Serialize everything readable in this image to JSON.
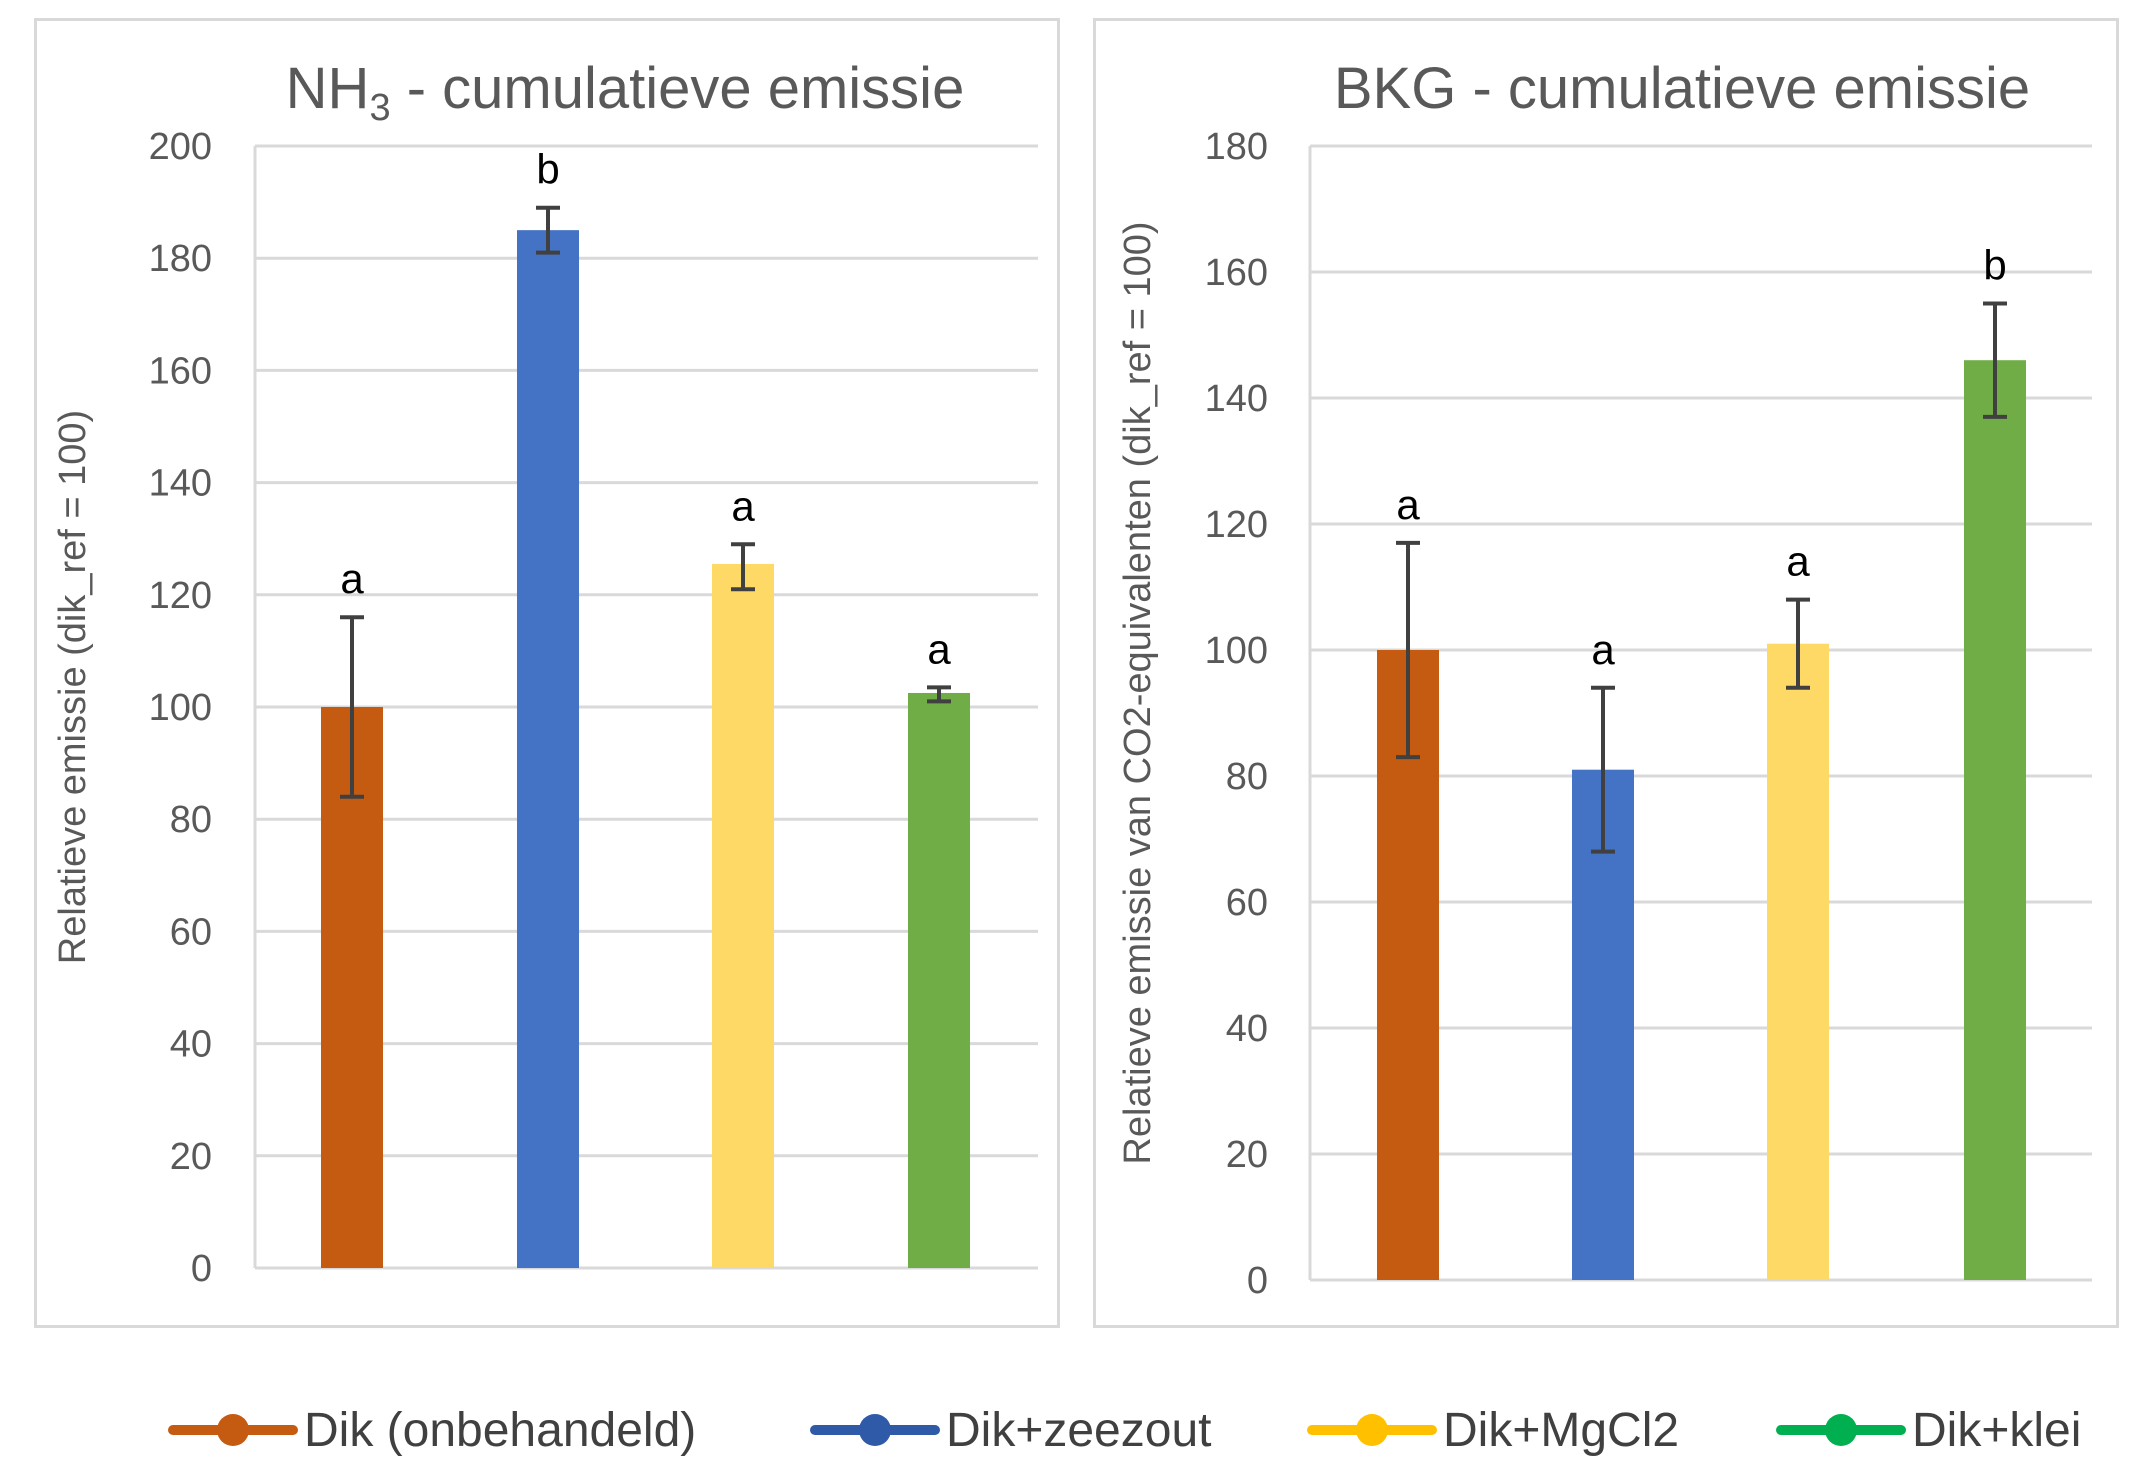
{
  "colors": {
    "dik": "#c55a11",
    "zeezout": "#4472c4",
    "mgcl2": "#ffd966",
    "klei": "#70ad47",
    "legend_mgcl2": "#ffc000",
    "legend_klei": "#00b050",
    "grid": "#d9d9d9",
    "text": "#595959",
    "error": "#404040"
  },
  "legend": {
    "items": [
      {
        "label": "Dik (onbehandeld)",
        "color": "#c55a11"
      },
      {
        "label": "Dik+zeezout",
        "color": "#2e5aa8"
      },
      {
        "label": "Dik+MgCl2",
        "color": "#ffc000"
      },
      {
        "label": "Dik+klei",
        "color": "#00b050"
      }
    ],
    "placement": "bottom"
  },
  "chart_data": [
    {
      "type": "bar",
      "title_main": "NH",
      "title_sub": "3",
      "title_rest": " - cumulatieve emissie",
      "ylabel": "Relatieve emissie (dik_ref = 100)",
      "xlabel": "",
      "ylim": [
        0,
        200
      ],
      "yticks": [
        "0",
        "20",
        "40",
        "60",
        "80",
        "100",
        "120",
        "140",
        "160",
        "180",
        "200"
      ],
      "grid": true,
      "categories": [
        "Dik (onbehandeld)",
        "Dik+zeezout",
        "Dik+MgCl2",
        "Dik+klei"
      ],
      "values": [
        100,
        185,
        125.5,
        102.5
      ],
      "error_low": [
        84,
        181,
        121,
        101
      ],
      "error_high": [
        116,
        189,
        129,
        103.5
      ],
      "annotations": [
        "a",
        "b",
        "a",
        "a"
      ]
    },
    {
      "type": "bar",
      "title_main": "BKG - cumulatieve emissie",
      "title_sub": "",
      "title_rest": "",
      "ylabel": "Relatieve emissie van CO2-equivalenten (dik_ref = 100)",
      "xlabel": "",
      "ylim": [
        0,
        180
      ],
      "yticks": [
        "0",
        "20",
        "40",
        "60",
        "80",
        "100",
        "120",
        "140",
        "160",
        "180"
      ],
      "grid": true,
      "categories": [
        "Dik (onbehandeld)",
        "Dik+zeezout",
        "Dik+MgCl2",
        "Dik+klei"
      ],
      "values": [
        100,
        81,
        101,
        146
      ],
      "error_low": [
        83,
        68,
        94,
        137
      ],
      "error_high": [
        117,
        94,
        108,
        155
      ],
      "annotations": [
        "a",
        "a",
        "a",
        "b"
      ]
    }
  ]
}
